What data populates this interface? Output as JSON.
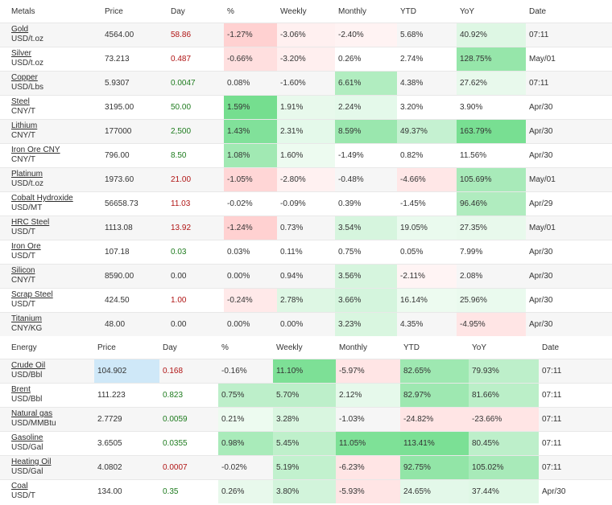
{
  "metals": {
    "headers": [
      "Metals",
      "Price",
      "Day",
      "%",
      "Weekly",
      "Monthly",
      "YTD",
      "YoY",
      "Date"
    ],
    "rows": [
      {
        "name": "Gold",
        "unit": "USD/t.oz",
        "price": "4564.00",
        "day": "58.86",
        "pct": "-1.27%",
        "weekly": "-3.06%",
        "monthly": "-2.40%",
        "ytd": "5.68%",
        "yoy": "40.92%",
        "date": "07:11"
      },
      {
        "name": "Silver",
        "unit": "USD/t.oz",
        "price": "73.213",
        "day": "0.487",
        "pct": "-0.66%",
        "weekly": "-3.20%",
        "monthly": "0.26%",
        "ytd": "2.74%",
        "yoy": "128.75%",
        "date": "May/01"
      },
      {
        "name": "Copper",
        "unit": "USD/Lbs",
        "price": "5.9307",
        "day": "0.0047",
        "pct": "0.08%",
        "weekly": "-1.60%",
        "monthly": "6.61%",
        "ytd": "4.38%",
        "yoy": "27.62%",
        "date": "07:11"
      },
      {
        "name": "Steel",
        "unit": "CNY/T",
        "price": "3195.00",
        "day": "50.00",
        "pct": "1.59%",
        "weekly": "1.91%",
        "monthly": "2.24%",
        "ytd": "3.20%",
        "yoy": "3.90%",
        "date": "Apr/30"
      },
      {
        "name": "Lithium",
        "unit": "CNY/T",
        "price": "177000",
        "day": "2,500",
        "pct": "1.43%",
        "weekly": "2.31%",
        "monthly": "8.59%",
        "ytd": "49.37%",
        "yoy": "163.79%",
        "date": "Apr/30"
      },
      {
        "name": "Iron Ore CNY",
        "unit": "CNY/T",
        "price": "796.00",
        "day": "8.50",
        "pct": "1.08%",
        "weekly": "1.60%",
        "monthly": "-1.49%",
        "ytd": "0.82%",
        "yoy": "11.56%",
        "date": "Apr/30"
      },
      {
        "name": "Platinum",
        "unit": "USD/t.oz",
        "price": "1973.60",
        "day": "21.00",
        "pct": "-1.05%",
        "weekly": "-2.80%",
        "monthly": "-0.48%",
        "ytd": "-4.66%",
        "yoy": "105.69%",
        "date": "May/01"
      },
      {
        "name": "Cobalt Hydroxide",
        "unit": "USD/MT",
        "price": "56658.73",
        "day": "11.03",
        "pct": "-0.02%",
        "weekly": "-0.09%",
        "monthly": "0.39%",
        "ytd": "-1.45%",
        "yoy": "96.46%",
        "date": "Apr/29"
      },
      {
        "name": "HRC Steel",
        "unit": "USD/T",
        "price": "1113.08",
        "day": "13.92",
        "pct": "-1.24%",
        "weekly": "0.73%",
        "monthly": "3.54%",
        "ytd": "19.05%",
        "yoy": "27.35%",
        "date": "May/01"
      },
      {
        "name": "Iron Ore",
        "unit": "USD/T",
        "price": "107.18",
        "day": "0.03",
        "pct": "0.03%",
        "weekly": "0.11%",
        "monthly": "0.75%",
        "ytd": "0.05%",
        "yoy": "7.99%",
        "date": "Apr/30"
      },
      {
        "name": "Silicon",
        "unit": "CNY/T",
        "price": "8590.00",
        "day": "0.00",
        "pct": "0.00%",
        "weekly": "0.94%",
        "monthly": "3.56%",
        "ytd": "-2.11%",
        "yoy": "2.08%",
        "date": "Apr/30"
      },
      {
        "name": "Scrap Steel",
        "unit": "USD/T",
        "price": "424.50",
        "day": "1.00",
        "pct": "-0.24%",
        "weekly": "2.78%",
        "monthly": "3.66%",
        "ytd": "16.14%",
        "yoy": "25.96%",
        "date": "Apr/30"
      },
      {
        "name": "Titanium",
        "unit": "CNY/KG",
        "price": "48.00",
        "day": "0.00",
        "pct": "0.00%",
        "weekly": "0.00%",
        "monthly": "3.23%",
        "ytd": "4.35%",
        "yoy": "-4.95%",
        "date": "Apr/30"
      }
    ]
  },
  "energy": {
    "headers": [
      "Energy",
      "Price",
      "Day",
      "%",
      "Weekly",
      "Monthly",
      "YTD",
      "YoY",
      "Date"
    ],
    "rows": [
      {
        "name": "Crude Oil",
        "unit": "USD/Bbl",
        "price": "104.902",
        "day": "0.168",
        "pct": "-0.16%",
        "weekly": "11.10%",
        "monthly": "-5.97%",
        "ytd": "82.65%",
        "yoy": "79.93%",
        "date": "07:11",
        "price_highlight": true
      },
      {
        "name": "Brent",
        "unit": "USD/Bbl",
        "price": "111.223",
        "day": "0.823",
        "pct": "0.75%",
        "weekly": "5.70%",
        "monthly": "2.12%",
        "ytd": "82.97%",
        "yoy": "81.66%",
        "date": "07:11"
      },
      {
        "name": "Natural gas",
        "unit": "USD/MMBtu",
        "price": "2.7729",
        "day": "0.0059",
        "pct": "0.21%",
        "weekly": "3.28%",
        "monthly": "-1.03%",
        "ytd": "-24.82%",
        "yoy": "-23.66%",
        "date": "07:11"
      },
      {
        "name": "Gasoline",
        "unit": "USD/Gal",
        "price": "3.6505",
        "day": "0.0355",
        "pct": "0.98%",
        "weekly": "5.45%",
        "monthly": "11.05%",
        "ytd": "113.41%",
        "yoy": "80.45%",
        "date": "07:11"
      },
      {
        "name": "Heating Oil",
        "unit": "USD/Gal",
        "price": "4.0802",
        "day": "0.0007",
        "pct": "-0.02%",
        "weekly": "5.19%",
        "monthly": "-6.23%",
        "ytd": "92.75%",
        "yoy": "105.02%",
        "date": "07:11"
      },
      {
        "name": "Coal",
        "unit": "USD/T",
        "price": "134.00",
        "day": "0.35",
        "pct": "0.26%",
        "weekly": "3.80%",
        "monthly": "-5.93%",
        "ytd": "24.65%",
        "yoy": "37.44%",
        "date": "Apr/30"
      }
    ]
  },
  "colors": {
    "text": "#333333",
    "day_positive": "#1e7b1e",
    "day_negative": "#b01515",
    "price_highlight": "#cfe8f8",
    "zebra": "#f6f6f6",
    "gain_strong": "#5ad87a",
    "loss_tint": "#ffd6d6"
  }
}
